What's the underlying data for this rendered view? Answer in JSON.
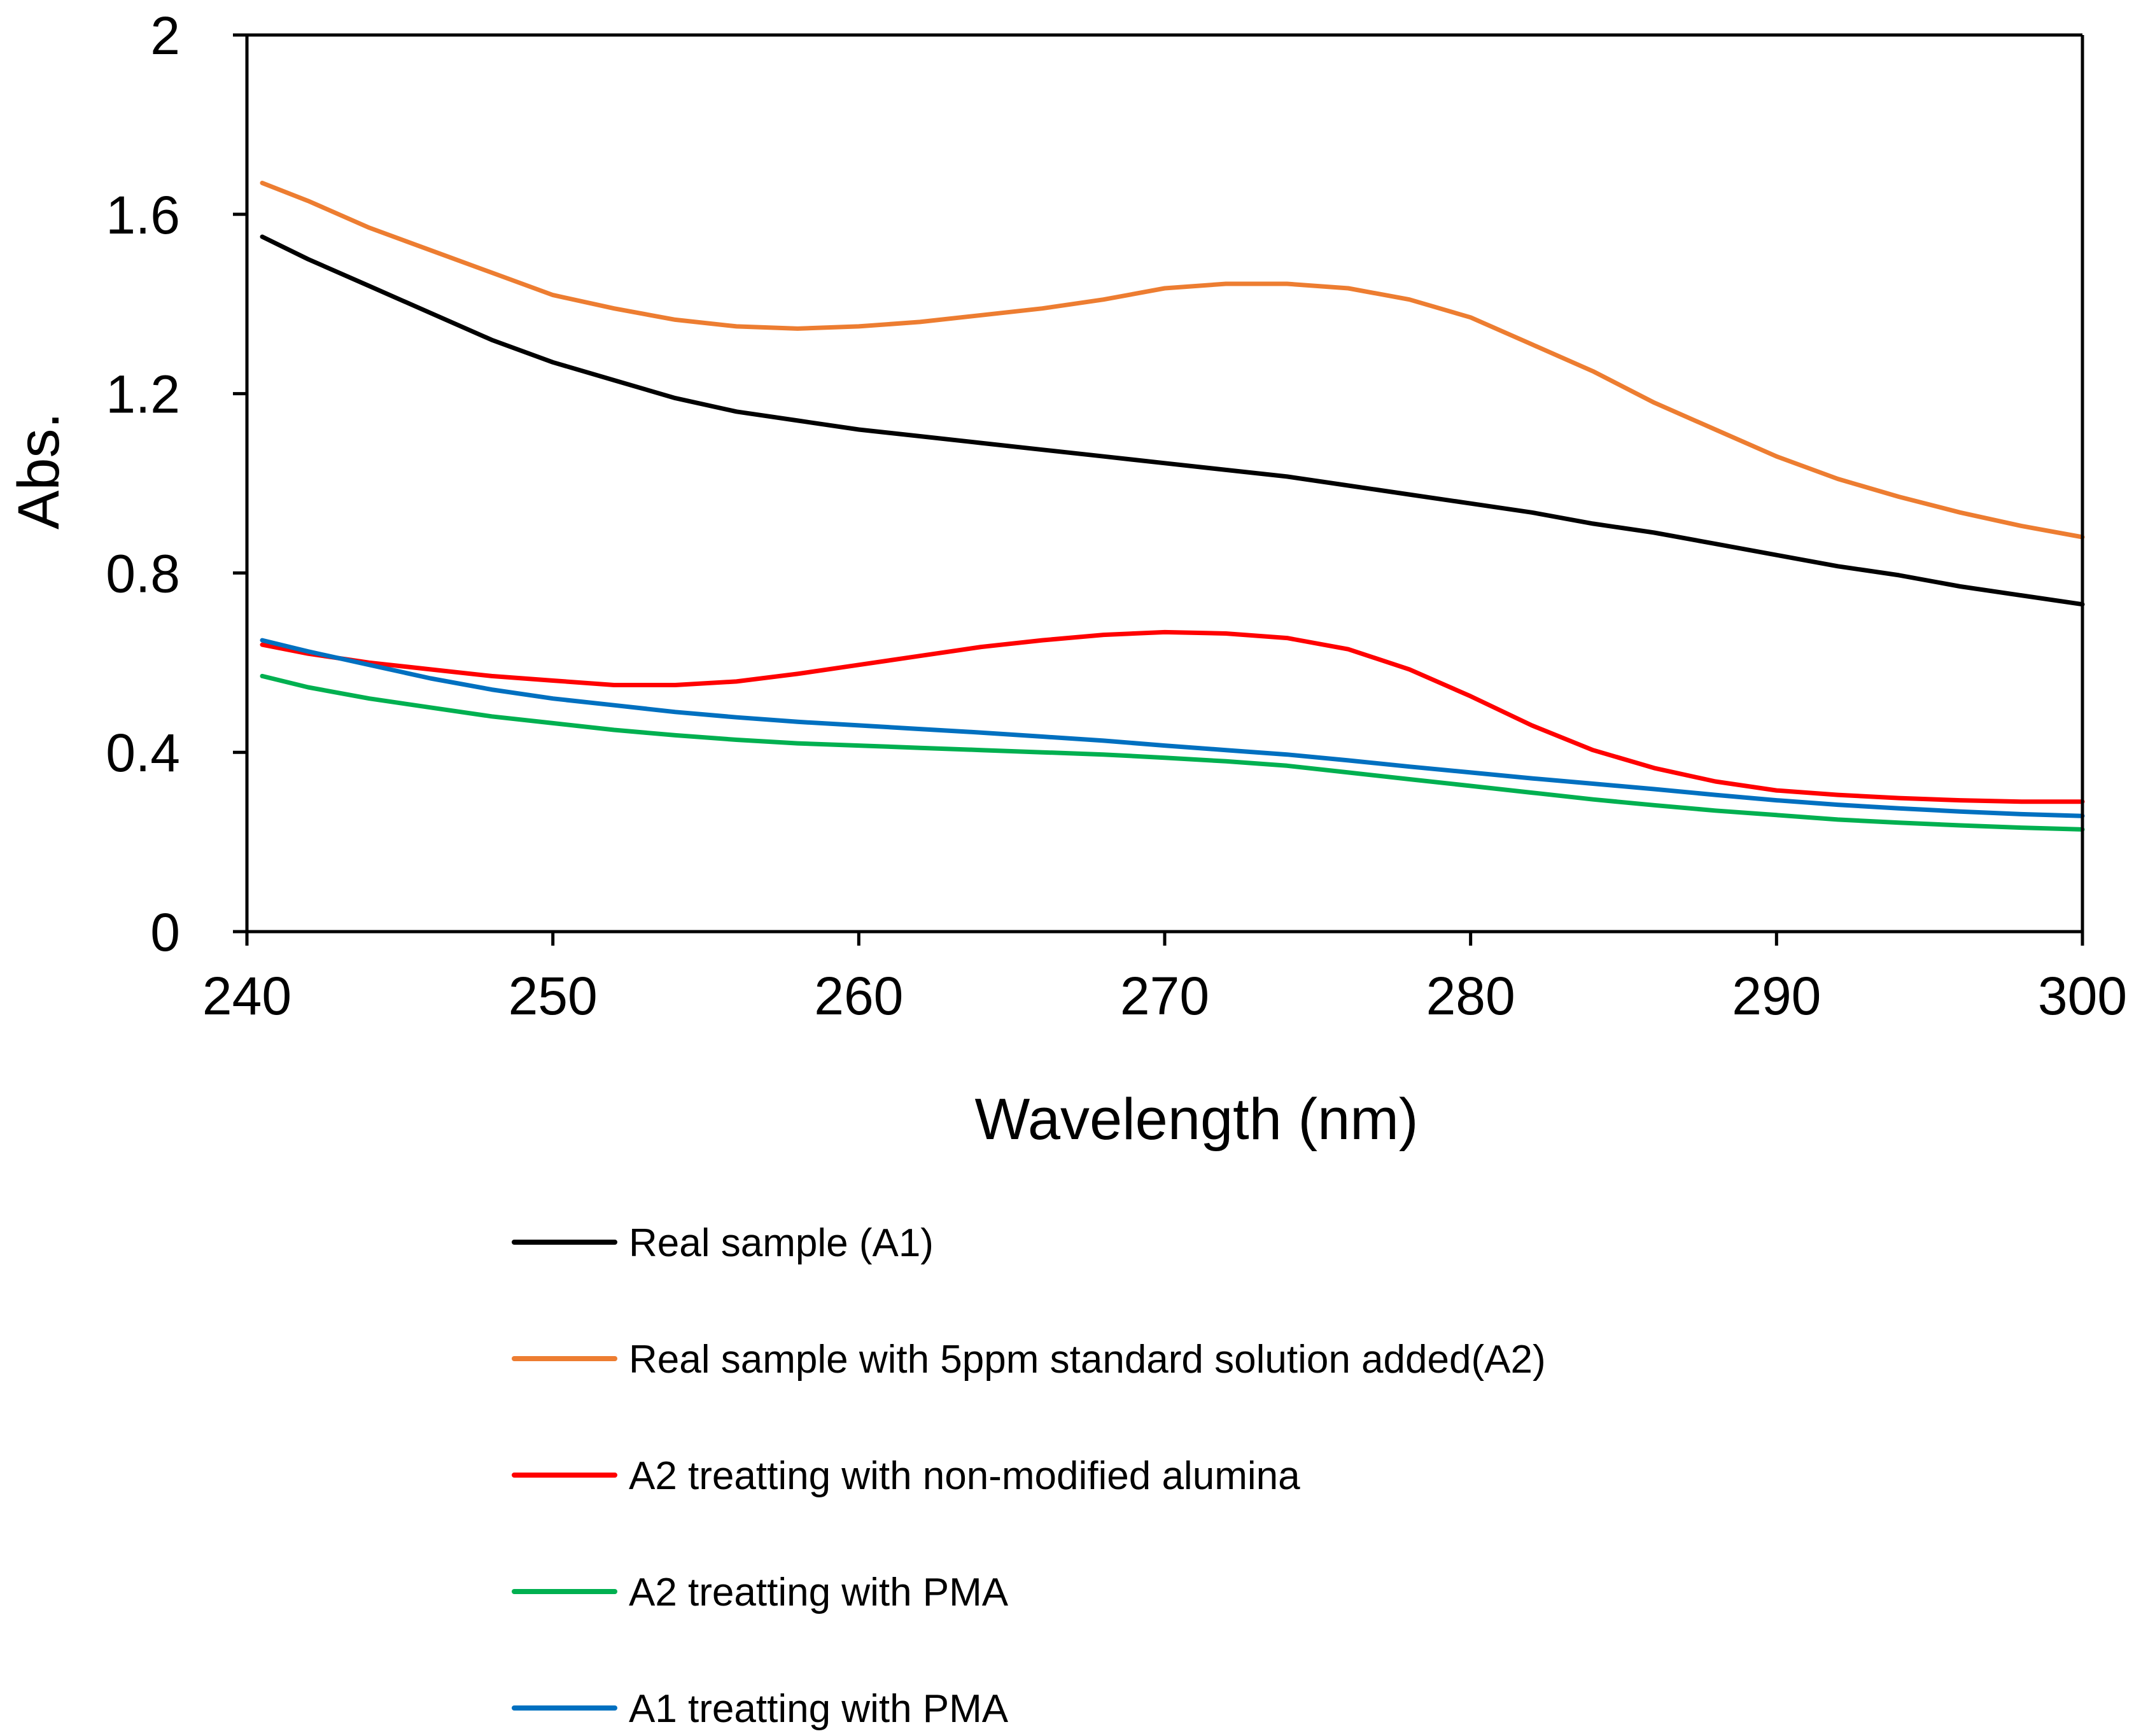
{
  "chart_data": {
    "type": "line",
    "title": "",
    "xlabel": "Wavelength (nm)",
    "ylabel": "Abs.",
    "xlim": [
      240,
      300
    ],
    "ylim": [
      0,
      2
    ],
    "xticks": [
      240,
      250,
      260,
      270,
      280,
      290,
      300
    ],
    "xtick_labels": [
      "240",
      "250",
      "260",
      "270",
      "280",
      "290",
      "300"
    ],
    "yticks": [
      0,
      0.4,
      0.8,
      1.2,
      1.6,
      2
    ],
    "ytick_labels": [
      "0",
      "0.4",
      "0.8",
      "1.2",
      "1.6",
      "2"
    ],
    "grid": false,
    "legend_position": "bottom",
    "x": [
      240.5,
      242,
      244,
      246,
      248,
      250,
      252,
      254,
      256,
      258,
      260,
      262,
      264,
      266,
      268,
      270,
      272,
      274,
      276,
      278,
      280,
      282,
      284,
      286,
      288,
      290,
      292,
      294,
      296,
      298,
      300
    ],
    "series": [
      {
        "name": "Real sample (A1)",
        "color": "#000000",
        "values": [
          1.55,
          1.5,
          1.44,
          1.38,
          1.32,
          1.27,
          1.23,
          1.19,
          1.16,
          1.14,
          1.12,
          1.105,
          1.09,
          1.075,
          1.06,
          1.045,
          1.03,
          1.015,
          0.995,
          0.975,
          0.955,
          0.935,
          0.91,
          0.89,
          0.865,
          0.84,
          0.815,
          0.795,
          0.77,
          0.75,
          0.73
        ]
      },
      {
        "name": "Real sample with 5ppm standard solution added(A2)",
        "color": "#ED7D31",
        "values": [
          1.67,
          1.63,
          1.57,
          1.52,
          1.47,
          1.42,
          1.39,
          1.365,
          1.35,
          1.345,
          1.35,
          1.36,
          1.375,
          1.39,
          1.41,
          1.435,
          1.445,
          1.445,
          1.435,
          1.41,
          1.37,
          1.31,
          1.25,
          1.18,
          1.12,
          1.06,
          1.01,
          0.97,
          0.935,
          0.905,
          0.88
        ]
      },
      {
        "name": "A2 treatting with non-modified alumina",
        "color": "#FF0000",
        "values": [
          0.64,
          0.62,
          0.6,
          0.585,
          0.57,
          0.56,
          0.55,
          0.55,
          0.558,
          0.575,
          0.595,
          0.615,
          0.635,
          0.65,
          0.662,
          0.668,
          0.665,
          0.655,
          0.63,
          0.585,
          0.525,
          0.46,
          0.405,
          0.365,
          0.335,
          0.315,
          0.305,
          0.298,
          0.293,
          0.29,
          0.29
        ]
      },
      {
        "name": "A2 treatting with PMA",
        "color": "#00B050",
        "values": [
          0.57,
          0.545,
          0.52,
          0.5,
          0.48,
          0.465,
          0.45,
          0.438,
          0.428,
          0.42,
          0.415,
          0.41,
          0.405,
          0.4,
          0.395,
          0.388,
          0.38,
          0.37,
          0.355,
          0.34,
          0.325,
          0.31,
          0.295,
          0.282,
          0.27,
          0.26,
          0.25,
          0.243,
          0.237,
          0.232,
          0.228
        ]
      },
      {
        "name": "A1 treatting with PMA",
        "color": "#0070C0",
        "values": [
          0.65,
          0.625,
          0.595,
          0.565,
          0.54,
          0.52,
          0.505,
          0.49,
          0.478,
          0.468,
          0.46,
          0.452,
          0.444,
          0.435,
          0.426,
          0.415,
          0.405,
          0.395,
          0.382,
          0.368,
          0.355,
          0.342,
          0.33,
          0.318,
          0.305,
          0.293,
          0.283,
          0.275,
          0.268,
          0.262,
          0.258
        ]
      }
    ]
  }
}
